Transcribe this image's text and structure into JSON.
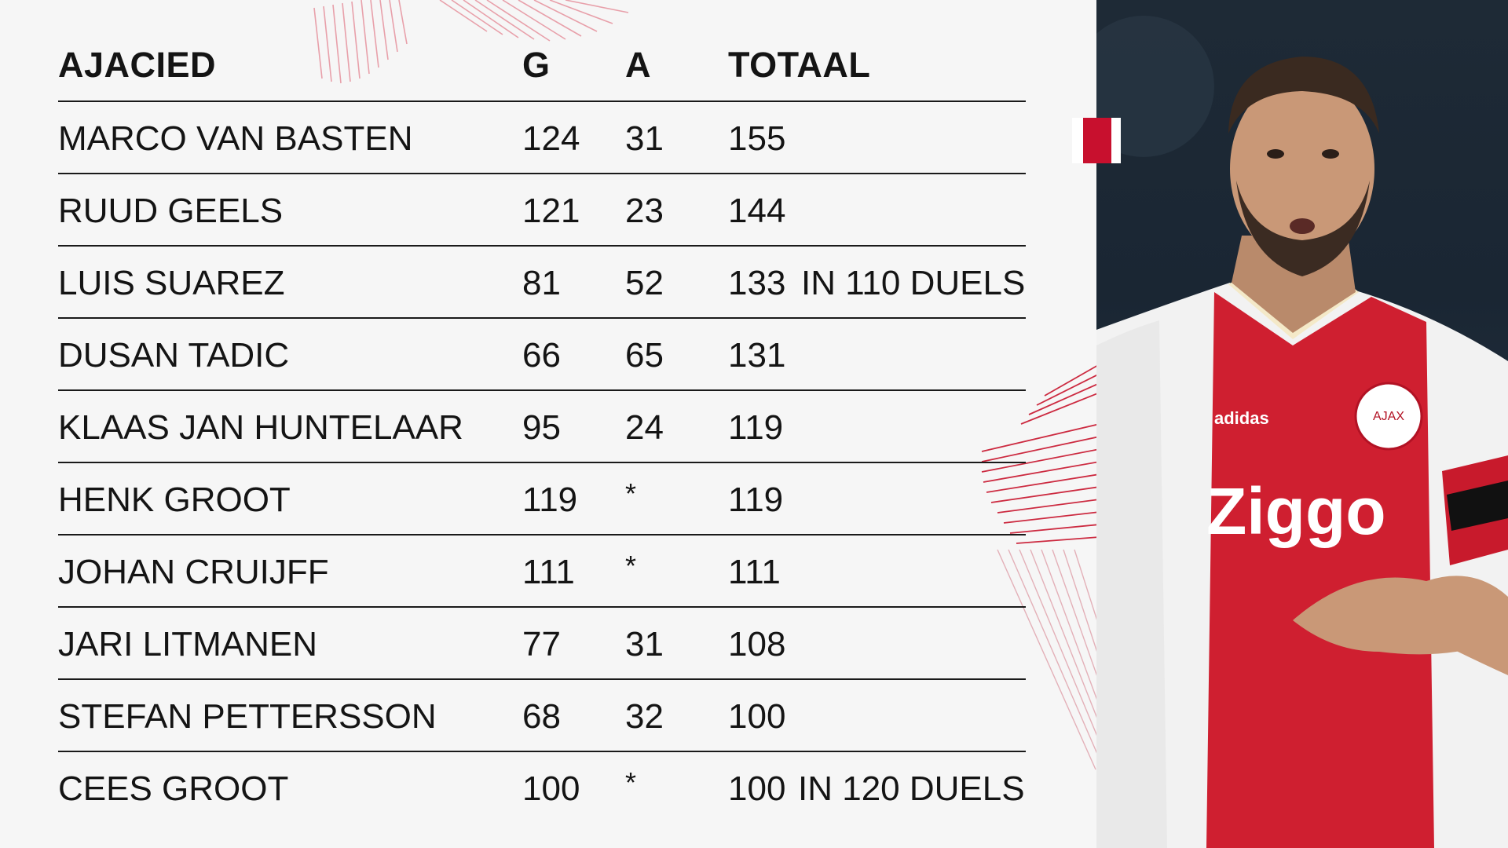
{
  "columns": {
    "name": "AJACIED",
    "g": "G",
    "a": "A",
    "total": "TOTAAL"
  },
  "rows": [
    {
      "name": "MARCO VAN BASTEN",
      "g": "124",
      "a": "31",
      "total": "155",
      "note": ""
    },
    {
      "name": "RUUD GEELS",
      "g": "121",
      "a": "23",
      "total": "144",
      "note": ""
    },
    {
      "name": "LUIS SUAREZ",
      "g": "81",
      "a": "52",
      "total": "133",
      "note": "IN 110 DUELS"
    },
    {
      "name": "DUSAN TADIC",
      "g": "66",
      "a": "65",
      "total": "131",
      "note": ""
    },
    {
      "name": "KLAAS JAN HUNTELAAR",
      "g": "95",
      "a": "24",
      "total": "119",
      "note": ""
    },
    {
      "name": "HENK GROOT",
      "g": "119",
      "a": "*",
      "total": "119",
      "note": ""
    },
    {
      "name": "JOHAN CRUIJFF",
      "g": "111",
      "a": "*",
      "total": "111",
      "note": ""
    },
    {
      "name": "JARI LITMANEN",
      "g": "77",
      "a": "31",
      "total": "108",
      "note": ""
    },
    {
      "name": "STEFAN PETTERSSON",
      "g": "68",
      "a": "32",
      "total": "100",
      "note": ""
    },
    {
      "name": "CEES GROOT",
      "g": "100",
      "a": "*",
      "total": "100",
      "note": "IN 120 DUELS"
    }
  ],
  "photo": {
    "subject": "ajax-player-in-red-white-kit",
    "kit_sponsor": "Ziggo",
    "kit_brand": "adidas",
    "crest_text": "AJAX"
  },
  "colors": {
    "background": "#f6f6f6",
    "text": "#141414",
    "rule": "#1a1a1a",
    "accent_red": "#c8102e"
  }
}
